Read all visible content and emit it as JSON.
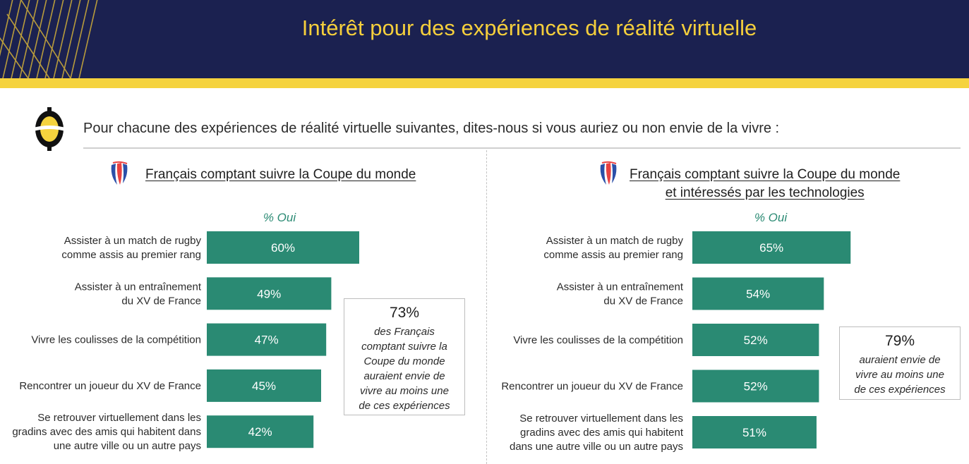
{
  "header": {
    "title": "Intérêt pour des expériences de réalité virtuelle"
  },
  "question": "Pour chacune des expériences de réalité virtuelle suivantes, dites-nous si vous auriez ou non envie de la vivre :",
  "colors": {
    "bar": "#2a8a73",
    "header_bg": "#1b2150",
    "accent_yellow": "#f5d33e",
    "pct_label": "#2a8a73"
  },
  "icons": {
    "brand_logo": "ipsos-style-logo-icon",
    "segment": "rugby-world-cup-logo-icon"
  },
  "chart_data": [
    {
      "type": "bar",
      "orientation": "horizontal",
      "title": "Français comptant suivre la Coupe du monde",
      "subtitle": "% Oui",
      "value_suffix": "%",
      "categories": [
        [
          "Assister à un match de rugby",
          "comme assis au premier rang"
        ],
        [
          "Assister à un entraînement",
          "du XV de France"
        ],
        [
          "Vivre les coulisses de la compétition"
        ],
        [
          "Rencontrer un joueur du XV de France"
        ],
        [
          "Se retrouver virtuellement dans les",
          "gradins avec des amis qui habitent dans",
          "une autre ville ou un autre pays"
        ]
      ],
      "values": [
        60,
        49,
        47,
        45,
        42
      ],
      "callout": {
        "value": "73%",
        "text": [
          "des Français",
          "comptant suivre la",
          "Coupe du monde",
          "auraient envie de",
          "vivre au moins une",
          "de ces expériences"
        ]
      }
    },
    {
      "type": "bar",
      "orientation": "horizontal",
      "title": [
        "Français comptant suivre la Coupe du monde",
        "et intéressés par les technologies"
      ],
      "subtitle": "% Oui",
      "value_suffix": "%",
      "categories": [
        [
          "Assister à un match de rugby",
          "comme assis au premier rang"
        ],
        [
          "Assister à un entraînement",
          "du XV de France"
        ],
        [
          "Vivre les coulisses de la compétition"
        ],
        [
          "Rencontrer un joueur du XV de France"
        ],
        [
          "Se retrouver virtuellement dans les",
          "gradins avec des amis qui habitent",
          "dans une autre ville ou un autre pays"
        ]
      ],
      "values": [
        65,
        54,
        52,
        52,
        51
      ],
      "callout": {
        "value": "79%",
        "text": [
          "auraient envie de",
          "vivre au moins une",
          "de ces expériences"
        ]
      }
    }
  ]
}
